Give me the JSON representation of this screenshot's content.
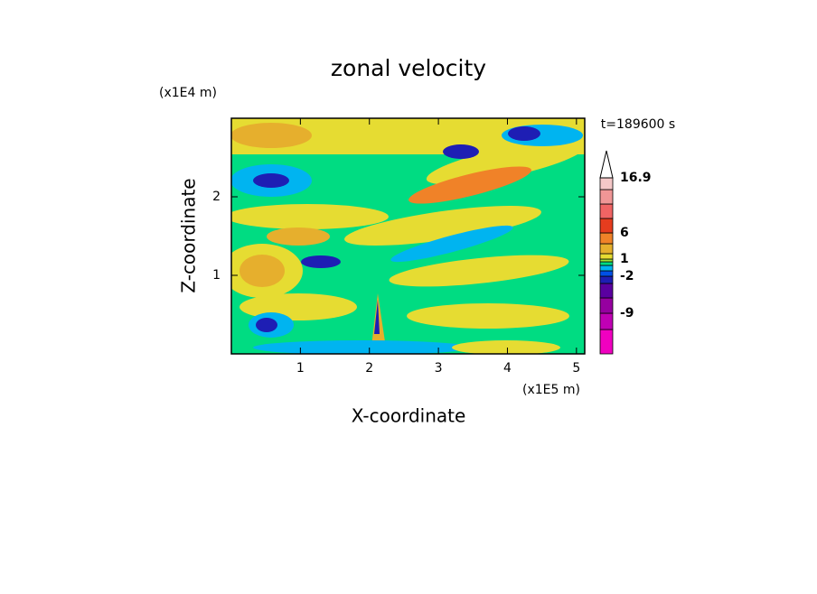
{
  "chart_data": {
    "type": "contour",
    "title": "zonal velocity",
    "time_label": "t=189600 s",
    "xlabel": "X-coordinate",
    "ylabel": "Z-coordinate",
    "x_unit": "(x1E5 m)",
    "y_unit": "(x1E4 m)",
    "xlim": [
      0,
      5.12
    ],
    "ylim": [
      0,
      3
    ],
    "xticks": [
      1,
      2,
      3,
      4,
      5
    ],
    "yticks": [
      1,
      2
    ],
    "colorbar": {
      "labels": [
        -9,
        -2,
        1,
        6,
        16.9
      ],
      "colors": [
        "#f000c0",
        "#c000b4",
        "#9600a0",
        "#5a00a0",
        "#1e1eb4",
        "#0050e6",
        "#00b4f0",
        "#00dc82",
        "#a0e632",
        "#e6dc32",
        "#e6af2d",
        "#f08228",
        "#e63c1e",
        "#f06464",
        "#f09696",
        "#f5c8c8"
      ]
    }
  }
}
